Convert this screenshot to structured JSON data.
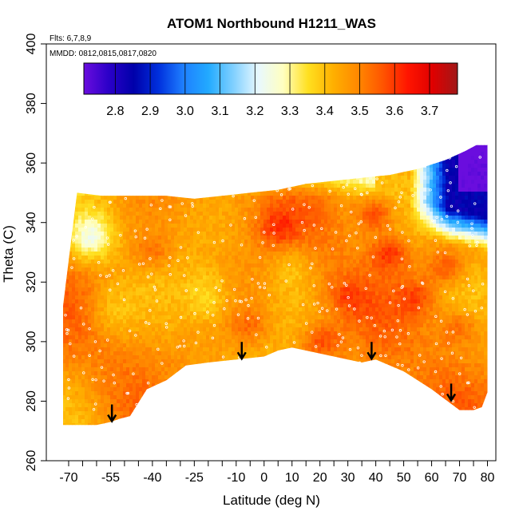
{
  "chart_data": {
    "type": "heatmap",
    "title": "ATOM1 Northbound H1211_WAS",
    "annotations": [
      "Flts: 6,7,8,9",
      "MMDD: 0812,0815,0817,0820"
    ],
    "xlabel": "Latitude (deg N)",
    "ylabel": "Theta (C)",
    "xlim": [
      -70,
      80
    ],
    "ylim": [
      260,
      400
    ],
    "x_tick_labels": [
      "-70",
      "-55",
      "-40",
      "-25",
      "-10",
      "0",
      "10",
      "20",
      "30",
      "40",
      "50",
      "60",
      "70",
      "80"
    ],
    "x_tick_values": [
      -70,
      -55,
      -40,
      -25,
      -10,
      0,
      10,
      20,
      30,
      40,
      50,
      60,
      70,
      80
    ],
    "y_tick_labels": [
      "260",
      "280",
      "300",
      "320",
      "340",
      "360",
      "380",
      "400"
    ],
    "y_tick_values": [
      260,
      280,
      300,
      320,
      340,
      360,
      380,
      400
    ],
    "colorbar": {
      "range": [
        2.71,
        3.78
      ],
      "tick_labels": [
        "2.8",
        "2.9",
        "3.0",
        "3.1",
        "3.2",
        "3.3",
        "3.4",
        "3.5",
        "3.6",
        "3.7"
      ],
      "tick_values": [
        2.8,
        2.9,
        3.0,
        3.1,
        3.2,
        3.3,
        3.4,
        3.5,
        3.6,
        3.7
      ],
      "colors": [
        "#6a0dde",
        "#2b00c8",
        "#0000aa",
        "#0030dd",
        "#1e7fff",
        "#22aaff",
        "#80d0ff",
        "#e8f8ff",
        "#ffffc0",
        "#ffe020",
        "#ffb000",
        "#ff8800",
        "#ff5500",
        "#ff1500",
        "#e00000",
        "#a01818"
      ]
    },
    "arrows_at": [
      {
        "lat": -54.5,
        "theta": 273
      },
      {
        "lat": -8,
        "theta": 294
      },
      {
        "lat": 38.5,
        "theta": 294
      },
      {
        "lat": 67,
        "theta": 280
      }
    ],
    "boundary": {
      "top": [
        [
          -67,
          350
        ],
        [
          -58,
          349
        ],
        [
          -45,
          349
        ],
        [
          -35,
          349
        ],
        [
          -25,
          348
        ],
        [
          -15,
          349
        ],
        [
          -5,
          350
        ],
        [
          5,
          351
        ],
        [
          15,
          353
        ],
        [
          25,
          354
        ],
        [
          35,
          355
        ],
        [
          45,
          356
        ],
        [
          55,
          358
        ],
        [
          65,
          361
        ],
        [
          72,
          364
        ],
        [
          76,
          366
        ],
        [
          78,
          366
        ]
      ],
      "bottom": [
        [
          78,
          278
        ],
        [
          75,
          277
        ],
        [
          70,
          277
        ],
        [
          60,
          284
        ],
        [
          50,
          290
        ],
        [
          40,
          294
        ],
        [
          35,
          293
        ],
        [
          25,
          295
        ],
        [
          15,
          297
        ],
        [
          10,
          298
        ],
        [
          5,
          297
        ],
        [
          0,
          295
        ],
        [
          -10,
          294
        ],
        [
          -20,
          293
        ],
        [
          -28,
          292
        ],
        [
          -35,
          287
        ],
        [
          -42,
          284
        ],
        [
          -48,
          275
        ],
        [
          -52,
          274
        ],
        [
          -55,
          273
        ],
        [
          -60,
          272
        ],
        [
          -72,
          272
        ]
      ],
      "left": [
        [
          -72,
          272
        ],
        [
          -72,
          312
        ]
      ],
      "right": [
        [
          78,
          278
        ],
        [
          80,
          283
        ],
        [
          80,
          366
        ]
      ]
    },
    "field_model": {
      "base_value": 3.47,
      "blue_region": "high latitude (>60N) above theta 335, values 2.8-3.2",
      "light_region": "upper-left corner near -65..-55N, theta 325-345, values ~3.3"
    }
  }
}
